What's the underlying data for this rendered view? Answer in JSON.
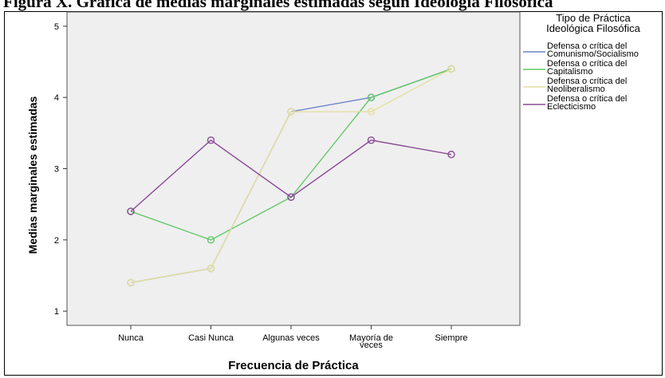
{
  "figure": {
    "title_fragment": "Figura X. Gráfica de medias marginales estimadas según Ideología Filosófica"
  },
  "chart_data": {
    "type": "line",
    "xlabel": "Frecuencia de Práctica",
    "ylabel": "Medias marginales estimadas",
    "categories": [
      [
        "Nunca"
      ],
      [
        "Casi Nunca"
      ],
      [
        "Algunas veces"
      ],
      [
        "Mayoría de",
        "veces"
      ],
      [
        "Siempre"
      ]
    ],
    "ylim": [
      0.8,
      5.2
    ],
    "yticks": [
      1,
      2,
      3,
      4,
      5
    ],
    "grid": false,
    "plot_background": "#efefef",
    "legend": {
      "position": "right",
      "title": [
        "Tipo de Práctica",
        "Ideológica Filosófica"
      ]
    },
    "series": [
      {
        "name": [
          "Defensa o crítica del",
          "Comunismo/Socialismo"
        ],
        "color": "#6d86c4",
        "values": [
          1.4,
          1.6,
          3.8,
          4.0,
          4.4
        ]
      },
      {
        "name": [
          "Defensa o crítica del",
          "Capitalismo"
        ],
        "color": "#63c86a",
        "values": [
          2.4,
          2.0,
          2.6,
          4.0,
          4.4
        ]
      },
      {
        "name": [
          "Defensa o crítica del",
          "Neoliberalismo"
        ],
        "color": "#e6dfa0",
        "values": [
          1.4,
          1.6,
          3.8,
          3.8,
          4.4
        ]
      },
      {
        "name": [
          "Defensa o crítica del",
          "Eclecticismo"
        ],
        "color": "#8a4b96",
        "values": [
          2.4,
          3.4,
          2.6,
          3.4,
          3.2
        ]
      }
    ]
  }
}
